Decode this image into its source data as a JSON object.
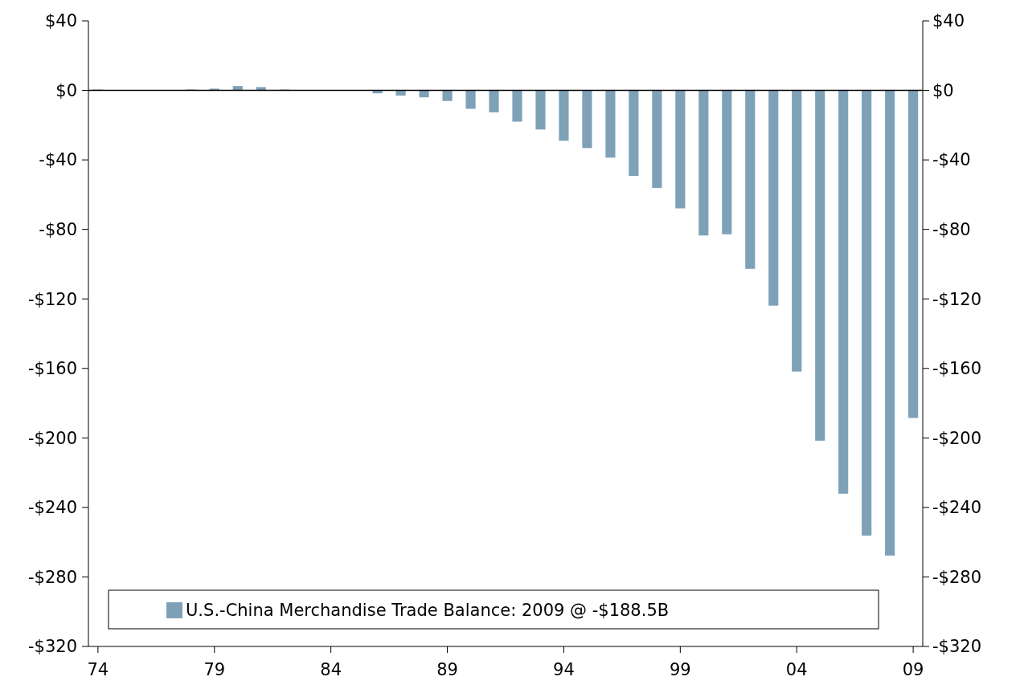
{
  "chart_data": {
    "type": "bar",
    "categories": [
      "74",
      null,
      null,
      null,
      null,
      "79",
      null,
      null,
      null,
      null,
      "84",
      null,
      null,
      null,
      null,
      "89",
      null,
      null,
      null,
      null,
      "94",
      null,
      null,
      null,
      null,
      "99",
      null,
      null,
      null,
      null,
      "04",
      null,
      null,
      null,
      null,
      "09"
    ],
    "series": [
      {
        "name": "U.S.-China Merchandise Trade Balance: 2009 @ -$188.5B",
        "color": "#7fa1b8",
        "values": [
          0.5,
          0,
          0,
          0,
          0.5,
          1.0,
          2.5,
          1.9,
          0.5,
          0,
          0,
          0,
          -1.7,
          -3.0,
          -4.0,
          -6.1,
          -10.6,
          -12.6,
          -18.0,
          -22.5,
          -29.0,
          -33.2,
          -38.7,
          -49.2,
          -56.1,
          -67.9,
          -83.5,
          -82.8,
          -102.7,
          -123.9,
          -161.8,
          -201.6,
          -232.1,
          -256.2,
          -267.7,
          -188.5
        ]
      }
    ],
    "ylim": [
      -320,
      40
    ],
    "yticks": [
      {
        "value": 40,
        "label": "$40"
      },
      {
        "value": 0,
        "label": "$0"
      },
      {
        "value": -40,
        "label": "-$40"
      },
      {
        "value": -80,
        "label": "-$80"
      },
      {
        "value": -120,
        "label": "-$120"
      },
      {
        "value": -160,
        "label": "-$160"
      },
      {
        "value": -200,
        "label": "-$200"
      },
      {
        "value": -240,
        "label": "-$240"
      },
      {
        "value": -280,
        "label": "-$280"
      },
      {
        "value": -320,
        "label": "-$320"
      }
    ],
    "y2lim": [
      -320,
      40
    ],
    "y2ticks": [
      {
        "value": 40,
        "label": "$40"
      },
      {
        "value": 0,
        "label": "$0"
      },
      {
        "value": -40,
        "label": "-$40"
      },
      {
        "value": -80,
        "label": "-$80"
      },
      {
        "value": -120,
        "label": "-$120"
      },
      {
        "value": -160,
        "label": "-$160"
      },
      {
        "value": -200,
        "label": "-$200"
      },
      {
        "value": -240,
        "label": "-$240"
      },
      {
        "value": -280,
        "label": "-$280"
      },
      {
        "value": -320,
        "label": "-$320"
      }
    ],
    "legend": "bottom"
  }
}
